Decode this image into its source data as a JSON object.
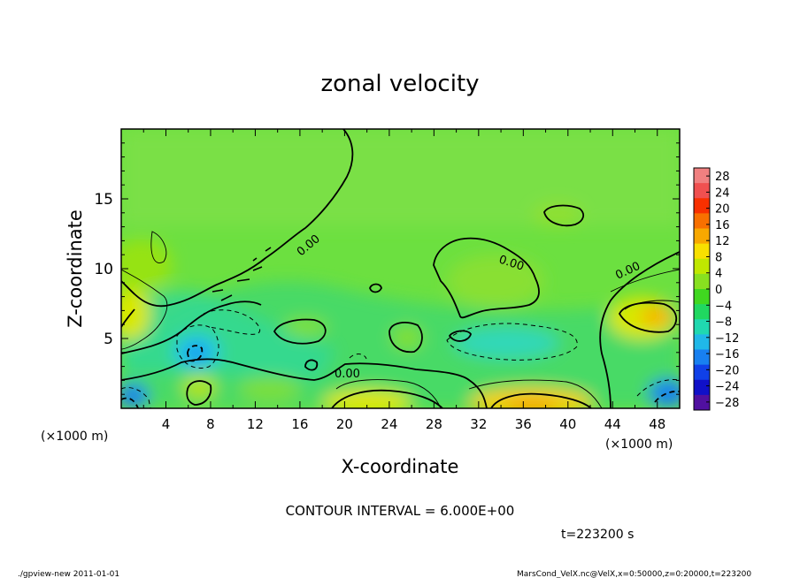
{
  "chart_data": {
    "type": "heatmap",
    "title": "zonal velocity",
    "xlabel": "X-coordinate",
    "ylabel": "Z-coordinate",
    "x_unit_note": "(×1000 m)",
    "y_unit_note": "(×1000 m)",
    "xlim": [
      0,
      50
    ],
    "ylim": [
      0,
      20
    ],
    "x_ticks": [
      "4",
      "8",
      "12",
      "16",
      "20",
      "24",
      "28",
      "32",
      "36",
      "40",
      "44",
      "48"
    ],
    "y_ticks": [
      "5",
      "10",
      "15"
    ],
    "x_tick_values": [
      4,
      8,
      12,
      16,
      20,
      24,
      28,
      32,
      36,
      40,
      44,
      48
    ],
    "y_tick_values": [
      5,
      10,
      15
    ],
    "contour_interval_text": "CONTOUR INTERVAL = 6.000E+00",
    "contour_labels": [
      "0.00",
      "0.00",
      "0.00",
      "0.00"
    ],
    "time_text": "t=223200 s",
    "colorbar": {
      "labels": [
        "28",
        "24",
        "20",
        "16",
        "12",
        "8",
        "4",
        "0",
        "−4",
        "−8",
        "−12",
        "−16",
        "−20",
        "−24",
        "−28"
      ],
      "label_values": [
        28,
        24,
        20,
        16,
        12,
        8,
        4,
        0,
        -4,
        -8,
        -12,
        -16,
        -20,
        -24,
        -28
      ],
      "range": [
        -30,
        30
      ],
      "colors": [
        "#f08080",
        "#f05050",
        "#f83000",
        "#f87000",
        "#f8a800",
        "#f8e000",
        "#c0e800",
        "#88e020",
        "#40d820",
        "#20d860",
        "#20d8b0",
        "#20b8e8",
        "#1880f0",
        "#1040e8",
        "#1010c8",
        "#5010a0"
      ]
    },
    "background_value": 0
  },
  "footer": {
    "left": "./gpview-new  2011-01-01",
    "right": "MarsCond_VelX.nc@VelX,x=0:50000,z=0:20000,t=223200"
  }
}
